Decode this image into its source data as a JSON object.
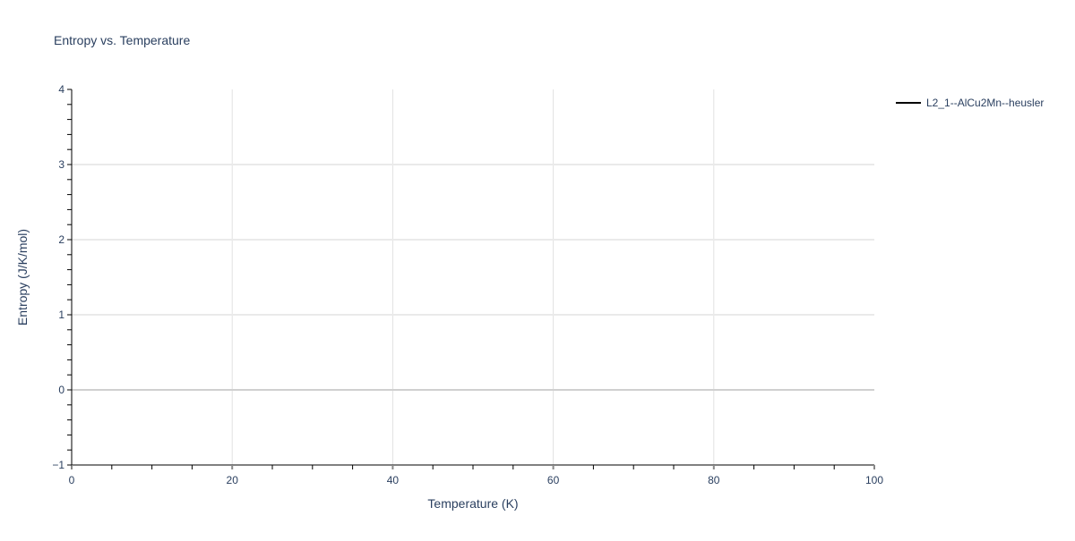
{
  "chart_data": {
    "type": "line",
    "title": "Entropy vs. Temperature",
    "xlabel": "Temperature (K)",
    "ylabel": "Entropy (J/K/mol)",
    "xlim": [
      0,
      100
    ],
    "ylim": [
      -1,
      4
    ],
    "x_ticks": [
      0,
      20,
      40,
      60,
      80,
      100
    ],
    "x_tick_labels": [
      "0",
      "20",
      "40",
      "60",
      "80",
      "100"
    ],
    "y_ticks": [
      -1,
      0,
      1,
      2,
      3,
      4
    ],
    "y_tick_labels": [
      "−1",
      "0",
      "1",
      "2",
      "3",
      "4"
    ],
    "grid": true,
    "legend_placement": "top-right",
    "series": [
      {
        "name": "L2_1--AlCu2Mn--heusler",
        "color": "#000000",
        "x": [],
        "y": []
      }
    ]
  }
}
